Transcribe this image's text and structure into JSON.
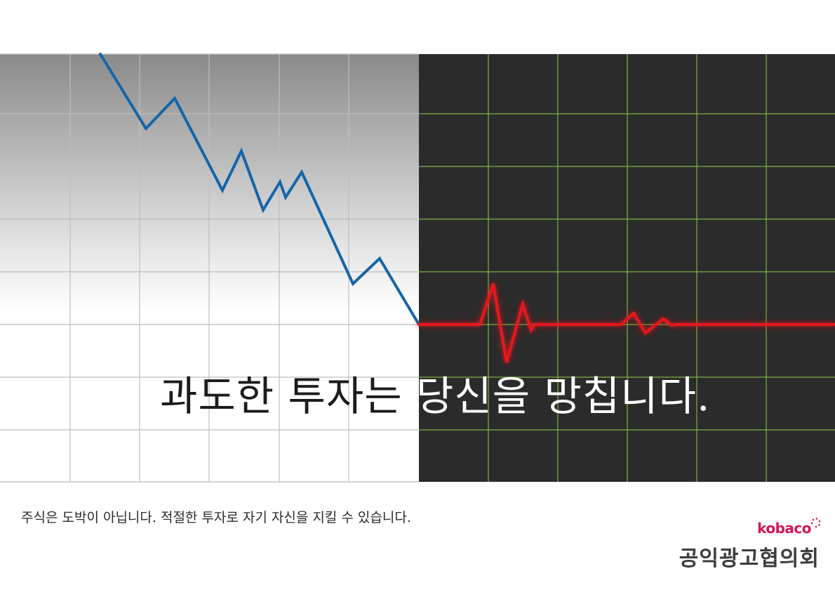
{
  "poster": {
    "headline_part1": "과도한 투자는 ",
    "headline_part2": "당신을 망칩니다.",
    "subcopy": "주식은 도박이 아닙니다. 적절한 투자로 자기 자신을 지킬 수 있습니다."
  },
  "logo": {
    "wordmark": "kobaco",
    "organization": "공익광고협의회"
  },
  "colors": {
    "stock_line": "#1565a8",
    "heartbeat_line": "#e8191f",
    "monitor_bg": "#2b2b2b",
    "monitor_grid": "#7cb342",
    "paper_grid": "#bdbdbd",
    "logo_accent": "#d4145a"
  }
}
